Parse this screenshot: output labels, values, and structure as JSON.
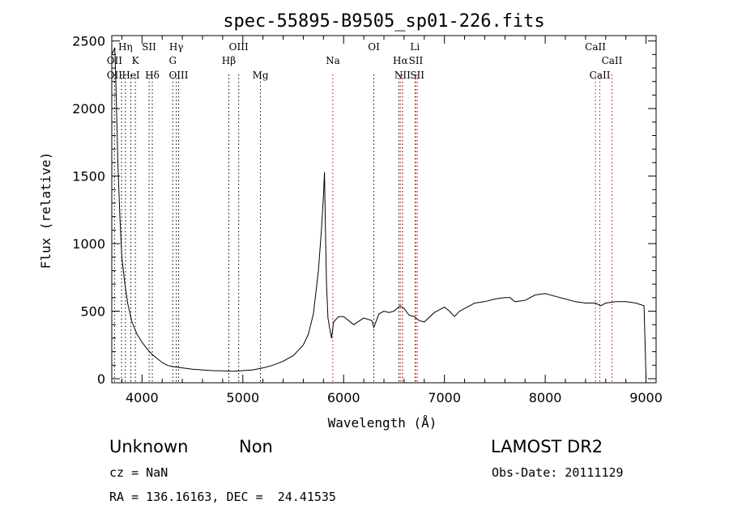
{
  "chart_data": {
    "type": "line",
    "title": "spec-55895-B9505_sp01-226.fits",
    "xlabel": "Wavelength (Å)",
    "ylabel": "Flux (relative)",
    "xlim": [
      3700,
      9100
    ],
    "ylim": [
      -30,
      2540
    ],
    "xticks": [
      4000,
      5000,
      6000,
      7000,
      8000,
      9000
    ],
    "yticks": [
      0,
      500,
      1000,
      1500,
      2000,
      2500
    ],
    "grid": false,
    "series": [
      {
        "x": [
          3700,
          3730,
          3740,
          3760,
          3780,
          3800,
          3830,
          3860,
          3900,
          3950,
          4000,
          4050,
          4100,
          4150,
          4200,
          4250,
          4300,
          4350,
          4400,
          4500,
          4600,
          4700,
          4800,
          4900,
          5000,
          5100,
          5200,
          5300,
          5400,
          5500,
          5600,
          5650,
          5700,
          5750,
          5780,
          5800,
          5810,
          5820,
          5830,
          5845,
          5860,
          5880,
          5900,
          5950,
          6000,
          6100,
          6200,
          6280,
          6300,
          6350,
          6400,
          6450,
          6500,
          6560,
          6600,
          6650,
          6700,
          6750,
          6800,
          6900,
          7000,
          7050,
          7100,
          7150,
          7200,
          7250,
          7300,
          7400,
          7500,
          7600,
          7650,
          7700,
          7800,
          7900,
          8000,
          8100,
          8200,
          8300,
          8400,
          8500,
          8550,
          8600,
          8700,
          8800,
          8900,
          8980,
          9000
        ],
        "y": [
          2400,
          2450,
          2200,
          1600,
          1200,
          900,
          700,
          550,
          420,
          330,
          270,
          220,
          180,
          150,
          120,
          100,
          90,
          85,
          80,
          70,
          65,
          60,
          58,
          55,
          60,
          65,
          80,
          100,
          130,
          170,
          250,
          330,
          480,
          800,
          1100,
          1350,
          1530,
          1100,
          700,
          450,
          380,
          300,
          420,
          460,
          460,
          400,
          450,
          430,
          380,
          480,
          500,
          490,
          500,
          540,
          520,
          470,
          460,
          430,
          420,
          490,
          530,
          500,
          460,
          500,
          520,
          540,
          560,
          570,
          590,
          600,
          600,
          570,
          580,
          620,
          630,
          610,
          590,
          570,
          560,
          560,
          540,
          560,
          570,
          570,
          560,
          540,
          0
        ]
      }
    ],
    "line_labels": [
      {
        "text": "OII",
        "x": 3727,
        "row": 2
      },
      {
        "text": "OII",
        "x": 3727,
        "row": 3
      },
      {
        "text": "Hη",
        "x": 3835,
        "row": 1
      },
      {
        "text": "HeI",
        "x": 3889,
        "row": 3
      },
      {
        "text": "K",
        "x": 3934,
        "row": 2
      },
      {
        "text": "SII",
        "x": 4070,
        "row": 1
      },
      {
        "text": "Hδ",
        "x": 4102,
        "row": 3
      },
      {
        "text": "Hγ",
        "x": 4340,
        "row": 1
      },
      {
        "text": "G",
        "x": 4305,
        "row": 2
      },
      {
        "text": "OIII",
        "x": 4363,
        "row": 3
      },
      {
        "text": "OIII",
        "x": 4959,
        "row": 1
      },
      {
        "text": "Hβ",
        "x": 4861,
        "row": 2
      },
      {
        "text": "Mg",
        "x": 5175,
        "row": 3
      },
      {
        "text": "Na",
        "x": 5893,
        "row": 2
      },
      {
        "text": "OI",
        "x": 6300,
        "row": 1
      },
      {
        "text": "Hα",
        "x": 6563,
        "row": 2
      },
      {
        "text": "NII",
        "x": 6584,
        "row": 3
      },
      {
        "text": "Li",
        "x": 6708,
        "row": 1
      },
      {
        "text": "SII",
        "x": 6717,
        "row": 2
      },
      {
        "text": "SII",
        "x": 6731,
        "row": 3
      },
      {
        "text": "CaII",
        "x": 8498,
        "row": 1
      },
      {
        "text": "CaII",
        "x": 8542,
        "row": 3
      },
      {
        "text": "CaII",
        "x": 8662,
        "row": 2
      }
    ],
    "line_marks": [
      {
        "x": 3727,
        "color": "#000000"
      },
      {
        "x": 3797,
        "color": "#000000"
      },
      {
        "x": 3835,
        "color": "#000000"
      },
      {
        "x": 3889,
        "color": "#000000"
      },
      {
        "x": 3934,
        "color": "#000000"
      },
      {
        "x": 4070,
        "color": "#000000"
      },
      {
        "x": 4102,
        "color": "#000000"
      },
      {
        "x": 4305,
        "color": "#000000"
      },
      {
        "x": 4340,
        "color": "#000000"
      },
      {
        "x": 4363,
        "color": "#000000"
      },
      {
        "x": 4861,
        "color": "#000000"
      },
      {
        "x": 4959,
        "color": "#000000"
      },
      {
        "x": 5175,
        "color": "#000000"
      },
      {
        "x": 5893,
        "color": "#cc0000"
      },
      {
        "x": 6300,
        "color": "#000000"
      },
      {
        "x": 6548,
        "color": "#000000"
      },
      {
        "x": 6563,
        "color": "#cc0000"
      },
      {
        "x": 6584,
        "color": "#000000"
      },
      {
        "x": 6708,
        "color": "#cc0000"
      },
      {
        "x": 6717,
        "color": "#cc0000"
      },
      {
        "x": 6731,
        "color": "#cc0000"
      },
      {
        "x": 8498,
        "color": "#cc0000"
      },
      {
        "x": 8542,
        "color": "#cc0000"
      },
      {
        "x": 8662,
        "color": "#cc0000"
      }
    ]
  },
  "info": {
    "object_class": "Unknown",
    "subclass": "Non",
    "survey": "LAMOST DR2",
    "redshift": "cz = NaN",
    "obs_date": "Obs-Date: 20111129",
    "coords": "RA = 136.16163, DEC =  24.41535"
  }
}
